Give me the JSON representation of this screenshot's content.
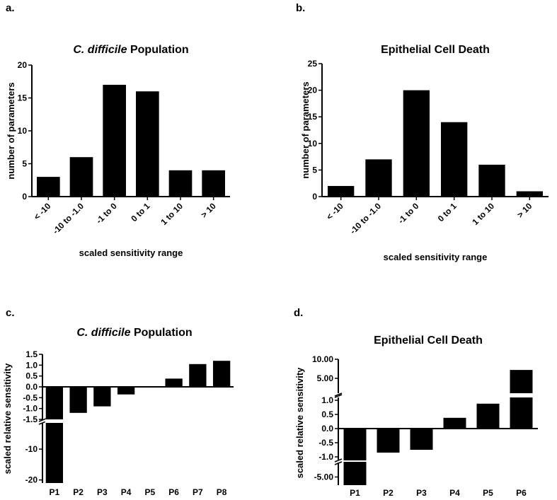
{
  "chart_data": [
    {
      "panel": "a.",
      "type": "bar",
      "title_italic": "C. difficile",
      "title_rest": " Population",
      "xlabel": "scaled sensitivity range",
      "ylabel": "number of parameters",
      "categories": [
        "< -10",
        "-10 to -1.0",
        "-1 to 0",
        "0 to 1",
        "1 to 10",
        "> 10"
      ],
      "values": [
        3,
        6,
        17,
        16,
        4,
        4
      ],
      "ylim": [
        0,
        20
      ],
      "yticks": [
        "0",
        "5",
        "10",
        "15",
        "20"
      ],
      "grid": false
    },
    {
      "panel": "b.",
      "type": "bar",
      "title_italic": "",
      "title_rest": "Epithelial Cell Death",
      "xlabel": "scaled sensitivity range",
      "ylabel": "number of parameters",
      "categories": [
        "< -10",
        "-10 to -1.0",
        "-1 to 0",
        "0 to 1",
        "1 to 10",
        "> 10"
      ],
      "values": [
        2,
        7,
        20,
        14,
        6,
        1
      ],
      "ylim": [
        0,
        25
      ],
      "yticks": [
        "0",
        "5",
        "10",
        "15",
        "20",
        "25"
      ],
      "grid": false
    },
    {
      "panel": "c.",
      "type": "bar",
      "title_italic": "C. difficile",
      "title_rest": " Population",
      "xlabel": "",
      "ylabel": "scaled relative sensitivity",
      "categories": [
        "P1",
        "P2",
        "P3",
        "P4",
        "P5",
        "P6",
        "P7",
        "P8"
      ],
      "values": [
        -21,
        -1.2,
        -0.9,
        -0.35,
        0.03,
        0.38,
        1.05,
        1.2
      ],
      "y_axis_break": true,
      "upper_segment_ylim": [
        -1.5,
        1.5
      ],
      "lower_segment_ylim": [
        -21,
        -1.5
      ],
      "yticks_upper": [
        "1.5",
        "1.0",
        "0.5",
        "0.0",
        "-0.5",
        "-1.0",
        "-1.5"
      ],
      "yticks_lower": [
        "-10",
        "-20"
      ],
      "grid": false
    },
    {
      "panel": "d.",
      "type": "bar",
      "title_italic": "",
      "title_rest": "Epithelial Cell Death",
      "xlabel": "",
      "ylabel": "scaled relative sensitivity",
      "categories": [
        "P1",
        "P2",
        "P3",
        "P4",
        "P5",
        "P6"
      ],
      "values": [
        -7,
        -0.85,
        -0.75,
        0.38,
        0.88,
        7.2
      ],
      "y_axis_break": true,
      "middle_segment_ylim": [
        -1.1,
        1.1
      ],
      "upper_segment_ticks": [
        "10.00",
        "5.00"
      ],
      "middle_segment_ticks": [
        "1.0",
        "0.5",
        "0.0",
        "-0.5",
        "-1.0"
      ],
      "lower_segment_ticks": [
        "-5.00"
      ],
      "grid": false
    }
  ]
}
